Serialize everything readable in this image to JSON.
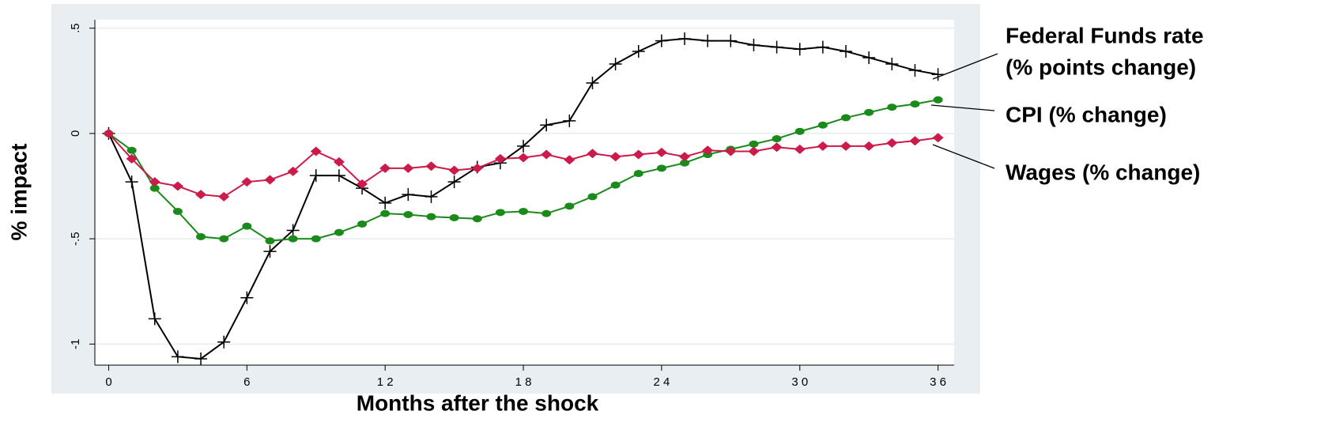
{
  "chart_data": {
    "type": "line",
    "x_label": "Months after the shock",
    "y_label": "% impact",
    "x": [
      0,
      1,
      2,
      3,
      4,
      5,
      6,
      7,
      8,
      9,
      10,
      11,
      12,
      13,
      14,
      15,
      16,
      17,
      18,
      19,
      20,
      21,
      22,
      23,
      24,
      25,
      26,
      27,
      28,
      29,
      30,
      31,
      32,
      33,
      34,
      35,
      36
    ],
    "xlim": [
      -0.6,
      36.7
    ],
    "xticks": [
      0,
      6,
      {
        "value": 12,
        "label": "1 2"
      },
      {
        "value": 18,
        "label": "1 8"
      },
      {
        "value": 24,
        "label": "2 4"
      },
      {
        "value": 30,
        "label": "3 0"
      },
      {
        "value": 36,
        "label": "3 6"
      }
    ],
    "ylim": [
      -1.1,
      0.54
    ],
    "yticks": [
      {
        "value": -1,
        "label": "-1"
      },
      {
        "value": -0.5,
        "label": "-.5"
      },
      0,
      {
        "value": 0.5,
        "label": ".5"
      }
    ],
    "grid": true,
    "legend": "right",
    "series": [
      {
        "name": [
          "Federal Funds rate",
          "(% points change)"
        ],
        "color": "#000000",
        "marker": "plus",
        "values": [
          0,
          -0.23,
          -0.88,
          -1.06,
          -1.07,
          -0.99,
          -0.78,
          -0.56,
          -0.46,
          -0.2,
          -0.2,
          -0.26,
          -0.33,
          -0.29,
          -0.3,
          -0.23,
          -0.16,
          -0.14,
          -0.06,
          0.04,
          0.06,
          0.24,
          0.33,
          0.39,
          0.44,
          0.45,
          0.44,
          0.44,
          0.42,
          0.41,
          0.4,
          0.41,
          0.39,
          0.36,
          0.33,
          0.3,
          0.28
        ]
      },
      {
        "name": [
          "CPI (% change)"
        ],
        "color": "#1a8a1a",
        "marker": "circle",
        "values": [
          0,
          -0.08,
          -0.26,
          -0.37,
          -0.49,
          -0.5,
          -0.44,
          -0.51,
          -0.5,
          -0.5,
          -0.47,
          -0.43,
          -0.38,
          -0.385,
          -0.395,
          -0.4,
          -0.405,
          -0.375,
          -0.37,
          -0.38,
          -0.345,
          -0.3,
          -0.245,
          -0.19,
          -0.165,
          -0.14,
          -0.1,
          -0.075,
          -0.05,
          -0.025,
          0.01,
          0.04,
          0.075,
          0.1,
          0.125,
          0.14,
          0.16
        ]
      },
      {
        "name": [
          "Wages (% change)"
        ],
        "color": "#cc1a4a",
        "marker": "diamond",
        "values": [
          0,
          -0.12,
          -0.23,
          -0.25,
          -0.29,
          -0.3,
          -0.23,
          -0.22,
          -0.18,
          -0.085,
          -0.135,
          -0.24,
          -0.165,
          -0.165,
          -0.155,
          -0.175,
          -0.165,
          -0.12,
          -0.115,
          -0.1,
          -0.125,
          -0.095,
          -0.11,
          -0.1,
          -0.09,
          -0.11,
          -0.08,
          -0.085,
          -0.085,
          -0.065,
          -0.075,
          -0.06,
          -0.06,
          -0.06,
          -0.045,
          -0.035,
          -0.02
        ]
      }
    ]
  }
}
